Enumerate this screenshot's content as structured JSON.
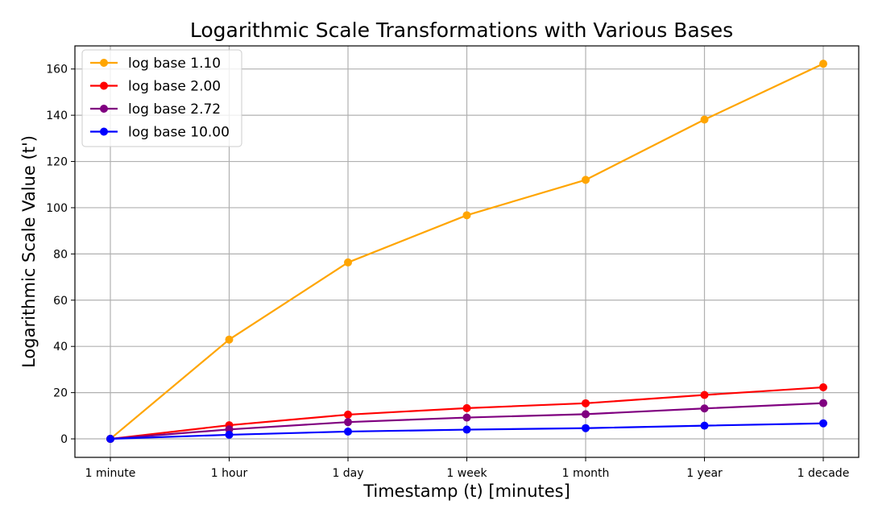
{
  "chart_data": {
    "type": "line",
    "title": "Logarithmic Scale Transformations with Various Bases",
    "xlabel": "Timestamp (t) [minutes]",
    "ylabel": "Logarithmic Scale Value (t')",
    "categories": [
      "1 minute",
      "1 hour",
      "1 day",
      "1 week",
      "1 month",
      "1 year",
      "1 decade"
    ],
    "ylim": [
      -8,
      170
    ],
    "yticks": [
      0,
      20,
      40,
      60,
      80,
      100,
      120,
      140,
      160
    ],
    "grid": true,
    "legend_position": "top-left",
    "series": [
      {
        "name": "log base 1.10",
        "color": "#ffa500",
        "values": [
          0,
          42.96,
          76.32,
          96.74,
          112.04,
          138.12,
          162.28
        ]
      },
      {
        "name": "log base 2.00",
        "color": "#ff0000",
        "values": [
          0,
          5.91,
          10.49,
          13.3,
          15.4,
          18.99,
          22.31
        ]
      },
      {
        "name": "log base 2.72",
        "color": "#800080",
        "values": [
          0,
          4.09,
          7.27,
          9.22,
          10.68,
          13.16,
          15.47
        ]
      },
      {
        "name": "log base 10.00",
        "color": "#0000ff",
        "values": [
          0,
          1.78,
          3.16,
          4.0,
          4.64,
          5.72,
          6.72
        ]
      }
    ]
  }
}
